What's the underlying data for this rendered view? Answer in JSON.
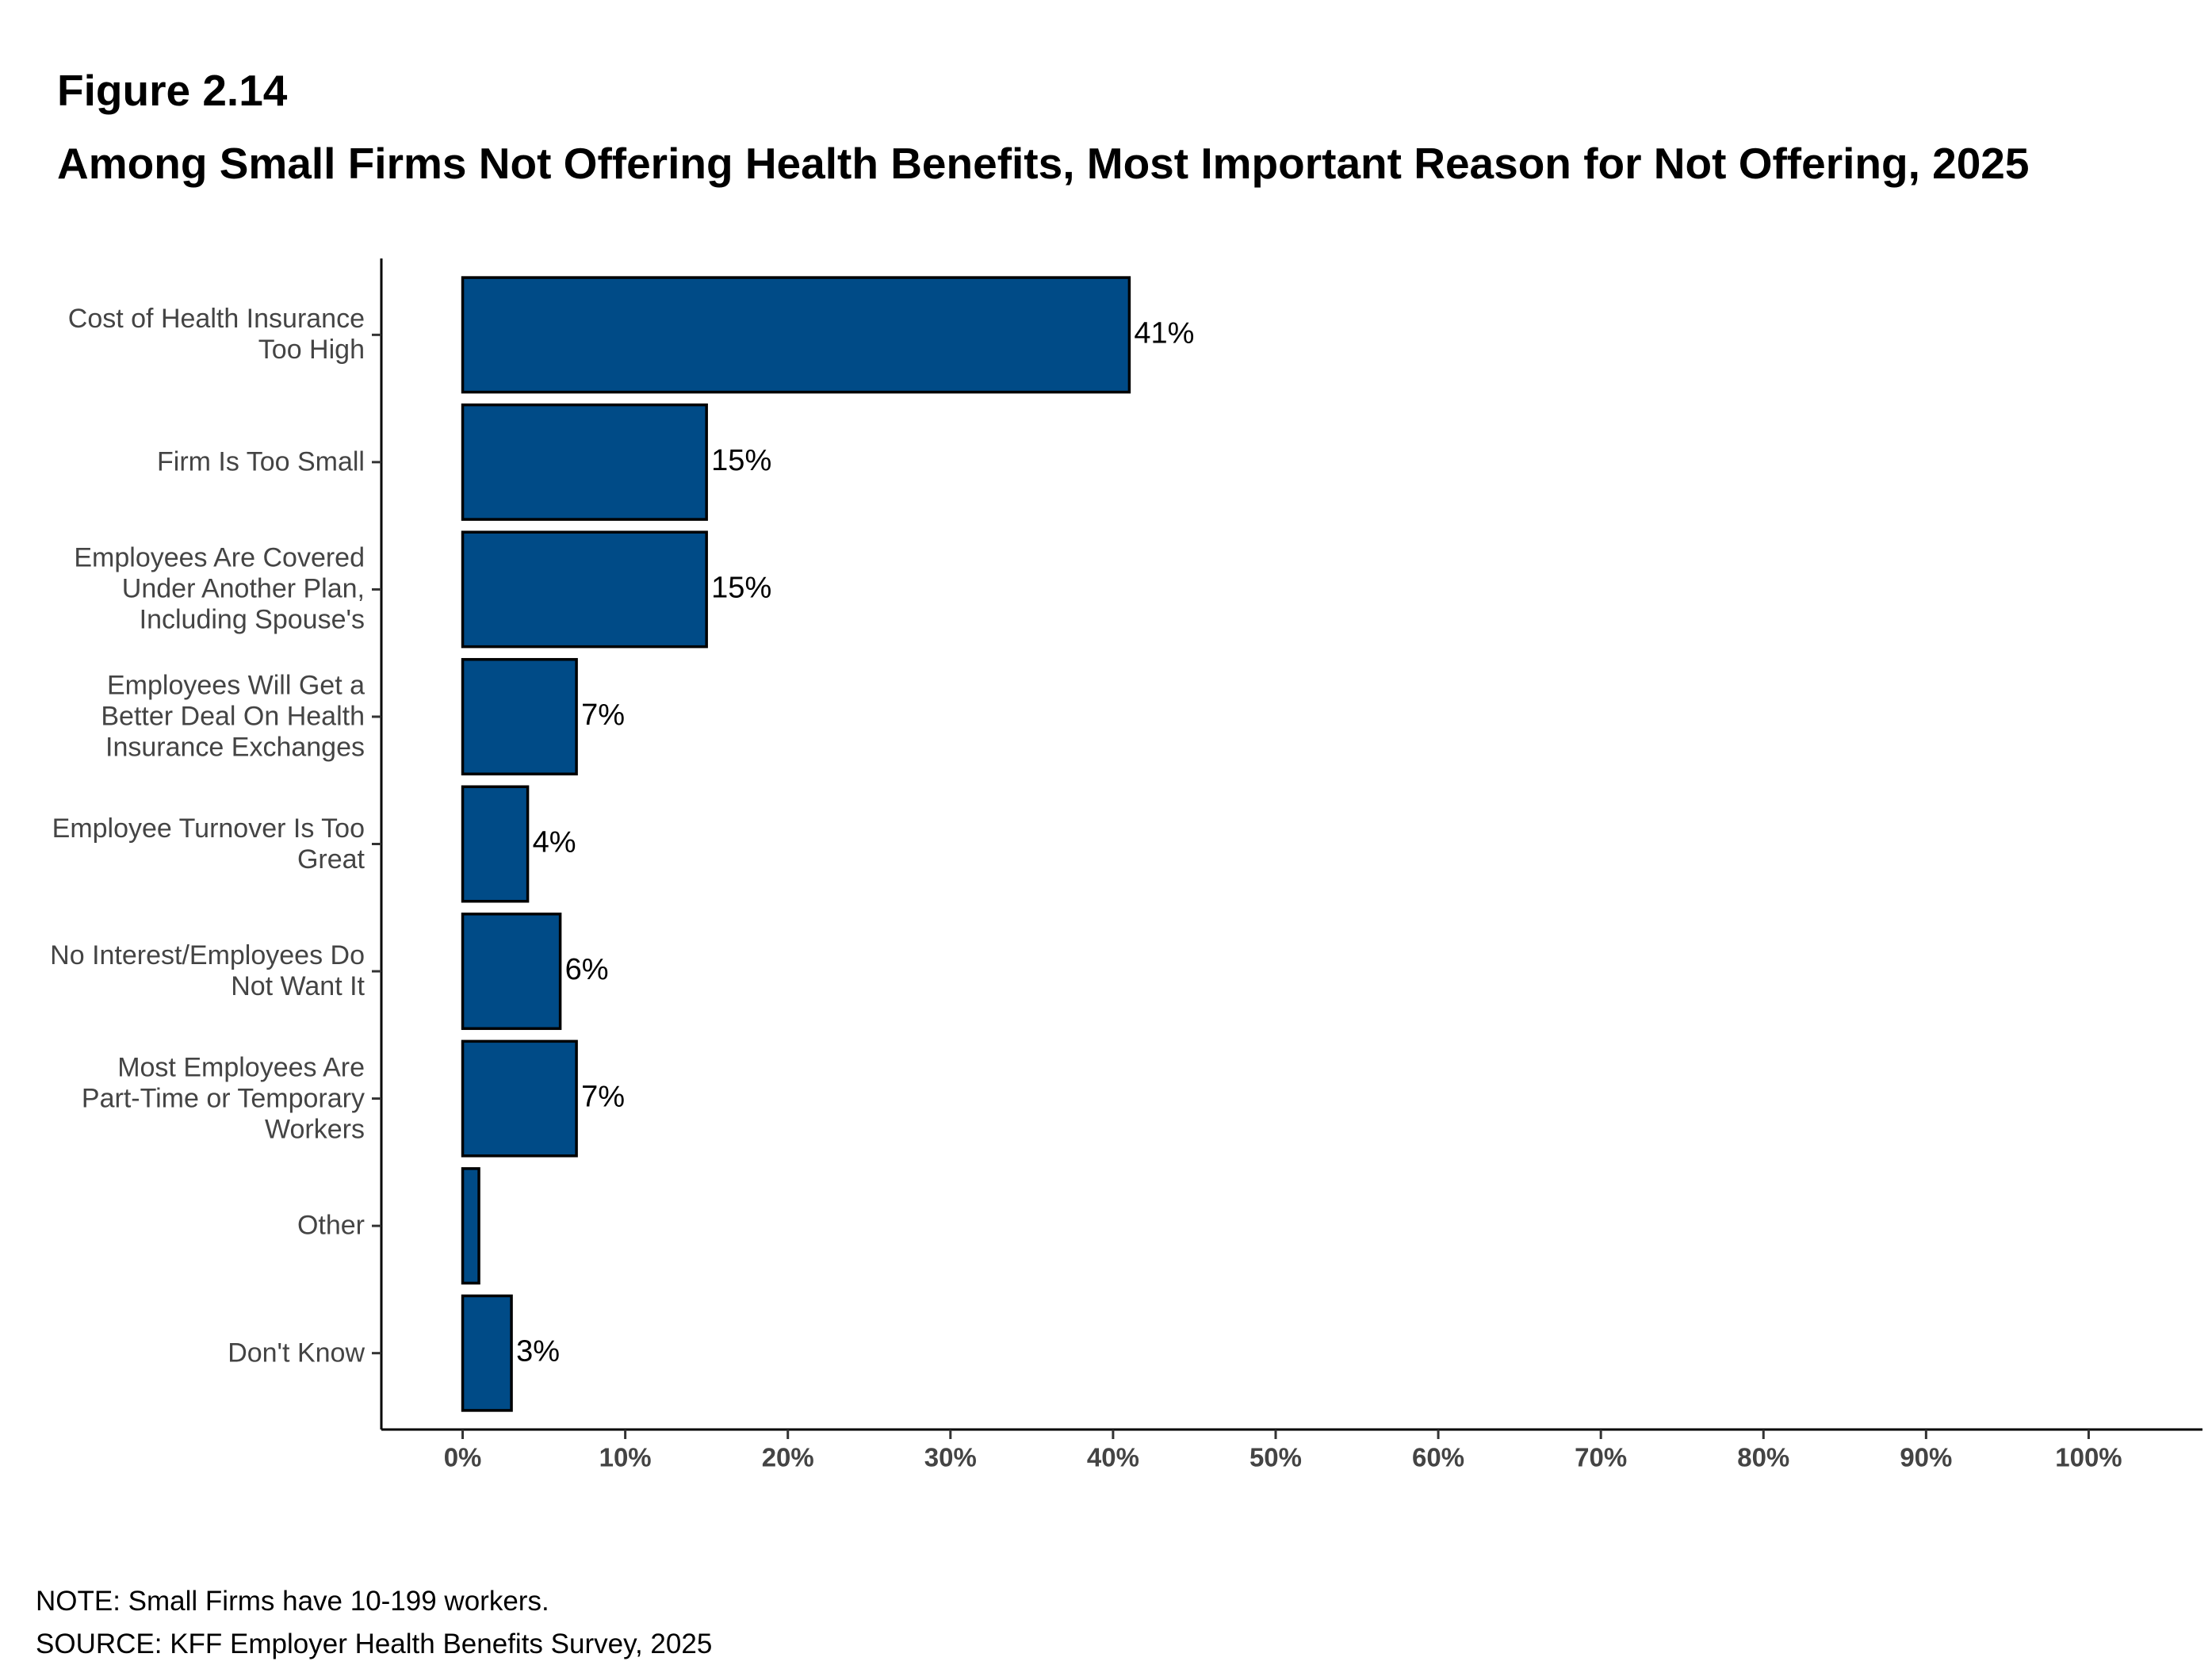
{
  "chart_data": {
    "type": "barh",
    "figure_label": "Figure 2.14",
    "title": "Among Small Firms Not Offering Health Benefits, Most Important Reason for Not Offering, 2025",
    "categories": [
      "Cost of Health Insurance\nToo High",
      "Firm Is Too Small",
      "Employees Are Covered\nUnder Another Plan,\nIncluding Spouse's",
      "Employees Will Get a\nBetter Deal On Health\nInsurance Exchanges",
      "Employee Turnover Is Too\nGreat",
      "No Interest/Employees Do\nNot Want It",
      "Most Employees Are\nPart-Time or Temporary\nWorkers",
      "Other",
      "Don't Know"
    ],
    "values": [
      41,
      15,
      15,
      7,
      4,
      6,
      7,
      1,
      3
    ],
    "value_labels": [
      "41%",
      "15%",
      "15%",
      "7%",
      "4%",
      "6%",
      "7%",
      null,
      "3%"
    ],
    "color": "#004b87",
    "xlim": [
      -5,
      107
    ],
    "xticks": [
      {
        "value": 0,
        "label": "0%"
      },
      {
        "value": 10,
        "label": "10%"
      },
      {
        "value": 20,
        "label": "20%"
      },
      {
        "value": 30,
        "label": "30%"
      },
      {
        "value": 40,
        "label": "40%"
      },
      {
        "value": 50,
        "label": "50%"
      },
      {
        "value": 60,
        "label": "60%"
      },
      {
        "value": 70,
        "label": "70%"
      },
      {
        "value": 80,
        "label": "80%"
      },
      {
        "value": 90,
        "label": "90%"
      },
      {
        "value": 100,
        "label": "100%"
      }
    ],
    "grid": false,
    "notes": [
      "NOTE: Small Firms have 10-199 workers.",
      "SOURCE: KFF Employer Health Benefits Survey, 2025"
    ]
  }
}
